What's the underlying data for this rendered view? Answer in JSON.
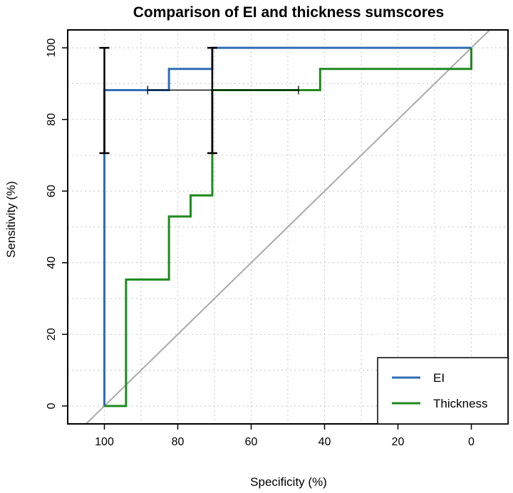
{
  "chart_data": {
    "type": "line",
    "title": "Comparison of EI and thickness sumscores",
    "xlabel": "Specificity (%)",
    "ylabel": "Sensitivity (%)",
    "xlim": [
      110,
      -10
    ],
    "ylim": [
      -5,
      105
    ],
    "x_reversed": true,
    "grid": true,
    "x_ticks": [
      100,
      80,
      60,
      40,
      20,
      0
    ],
    "y_ticks": [
      0,
      20,
      40,
      60,
      80,
      100
    ],
    "legend_position": "bottom-right",
    "diagonal": {
      "color": "#aaaaaa",
      "points": [
        [
          100,
          0
        ],
        [
          0,
          100
        ]
      ]
    },
    "series": [
      {
        "name": "EI",
        "color": "#2E6DB4",
        "x": [
          100,
          100,
          82.4,
          82.4,
          70.6,
          70.6,
          0
        ],
        "y": [
          0,
          88.2,
          88.2,
          94.1,
          94.1,
          100,
          100
        ]
      },
      {
        "name": "Thickness",
        "color": "#1E8A1E",
        "x": [
          100,
          94.1,
          94.1,
          82.4,
          82.4,
          76.5,
          76.5,
          70.6,
          70.6,
          41.2,
          41.2,
          0,
          0
        ],
        "y": [
          0,
          0,
          35.3,
          35.3,
          52.9,
          52.9,
          58.8,
          58.8,
          88.2,
          88.2,
          94.1,
          94.1,
          100
        ]
      }
    ],
    "error_bars": [
      {
        "orientation": "vertical",
        "x": 100,
        "y_low": 70.6,
        "y_high": 100,
        "color": "#000000"
      },
      {
        "orientation": "vertical",
        "x": 70.6,
        "y_low": 70.6,
        "y_high": 100,
        "color": "#000000"
      },
      {
        "orientation": "horizontal",
        "y": 88.2,
        "x_low": 88.2,
        "x_high": 47.1,
        "color": "#000000"
      }
    ]
  }
}
